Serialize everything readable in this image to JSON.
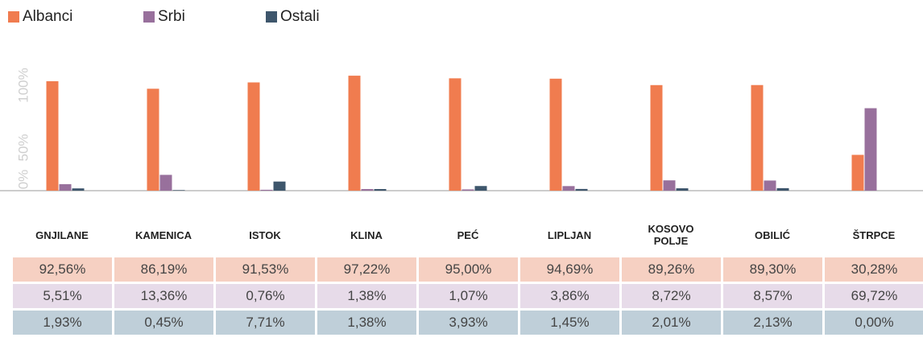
{
  "chart_data": {
    "type": "bar",
    "categories": [
      "GNJILANE",
      "KAMENICA",
      "ISTOK",
      "KLINA",
      "PEĆ",
      "LIPLJAN",
      "KOSOVO POLJE",
      "OBILIĆ",
      "ŠTRPCE"
    ],
    "series": [
      {
        "name": "Albanci",
        "color": "#f07c4f",
        "row_color": "#f6d0c2",
        "values": [
          92.56,
          86.19,
          91.53,
          97.22,
          95.0,
          94.69,
          89.26,
          89.3,
          30.28
        ],
        "value_labels": [
          "92,56%",
          "86,19%",
          "91,53%",
          "97,22%",
          "95,00%",
          "94,69%",
          "89,26%",
          "89,30%",
          "30,28%"
        ]
      },
      {
        "name": "Srbi",
        "color": "#98709c",
        "row_color": "#e7dbe9",
        "values": [
          5.51,
          13.36,
          0.76,
          1.38,
          1.07,
          3.86,
          8.72,
          8.57,
          69.72
        ],
        "value_labels": [
          "5,51%",
          "13,36%",
          "0,76%",
          "1,38%",
          "1,07%",
          "3,86%",
          "8,72%",
          "8,57%",
          "69,72%"
        ]
      },
      {
        "name": "Ostali",
        "color": "#3e566c",
        "row_color": "#bfcfd9",
        "values": [
          1.93,
          0.45,
          7.71,
          1.38,
          3.93,
          1.45,
          2.01,
          2.13,
          0.0
        ],
        "value_labels": [
          "1,93%",
          "0,45%",
          "7,71%",
          "1,38%",
          "3,93%",
          "1,45%",
          "2,01%",
          "2,13%",
          "0,00%"
        ]
      }
    ],
    "ylim": [
      0,
      100
    ],
    "yticks": [
      {
        "value": 0,
        "label": "0%"
      },
      {
        "value": 50,
        "label": "50%"
      },
      {
        "value": 100,
        "label": "100%"
      }
    ],
    "legend": "top-left"
  }
}
